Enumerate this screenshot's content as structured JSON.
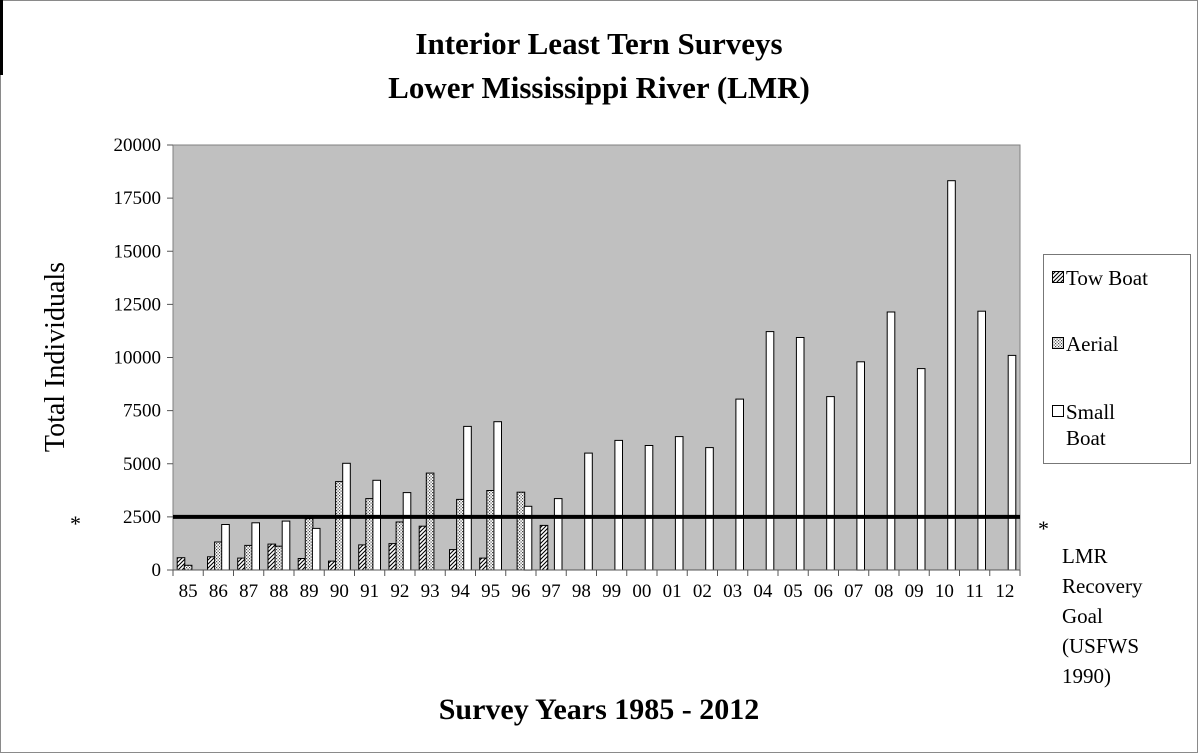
{
  "chart_data": {
    "type": "bar",
    "title": "Interior Least Tern Surveys",
    "subtitle": "Lower Mississippi River (LMR)",
    "xlabel": "Survey Years 1985 - 2012",
    "ylabel": "Total Individuals",
    "ylim": [
      0,
      20000
    ],
    "yticks": [
      "0",
      "2500",
      "5000",
      "7500",
      "10000",
      "12500",
      "15000",
      "17500",
      "20000"
    ],
    "grid": false,
    "legend_position": "right",
    "categories": [
      "85",
      "86",
      "87",
      "88",
      "89",
      "90",
      "91",
      "92",
      "93",
      "94",
      "95",
      "96",
      "97",
      "98",
      "99",
      "00",
      "01",
      "02",
      "03",
      "04",
      "05",
      "06",
      "07",
      "08",
      "09",
      "10",
      "11",
      "12"
    ],
    "series": [
      {
        "name": "Tow Boat",
        "pattern": "diagonal-hatch",
        "values": [
          580,
          620,
          560,
          1220,
          540,
          420,
          1180,
          1240,
          2060,
          960,
          560,
          null,
          2100,
          null,
          null,
          null,
          null,
          null,
          null,
          null,
          null,
          null,
          null,
          null,
          null,
          null,
          null,
          null
        ]
      },
      {
        "name": "Aerial",
        "pattern": "dotted",
        "values": [
          220,
          1320,
          1160,
          1120,
          2420,
          4160,
          3360,
          2260,
          4560,
          3320,
          3740,
          3660,
          null,
          null,
          null,
          null,
          null,
          null,
          null,
          null,
          null,
          null,
          null,
          null,
          null,
          null,
          null,
          null
        ]
      },
      {
        "name": "Small Boat",
        "pattern": "white",
        "values": [
          null,
          2140,
          2220,
          2300,
          1960,
          5020,
          4220,
          3640,
          null,
          6760,
          6980,
          3000,
          3360,
          5500,
          6100,
          5860,
          6280,
          5760,
          8040,
          11220,
          10940,
          8160,
          9800,
          12140,
          9480,
          18320,
          12180,
          10100
        ]
      }
    ],
    "reference_line": {
      "value": 2500,
      "marker": "*"
    },
    "plot_background": "#c0c0c0"
  },
  "legend": {
    "towboat": "Tow Boat",
    "aerial": "Aerial",
    "smallboat": "Small\nBoat"
  },
  "goal_note": {
    "asterisk": "*",
    "text": "LMR\nRecovery\nGoal\n(USFWS\n1990)"
  }
}
